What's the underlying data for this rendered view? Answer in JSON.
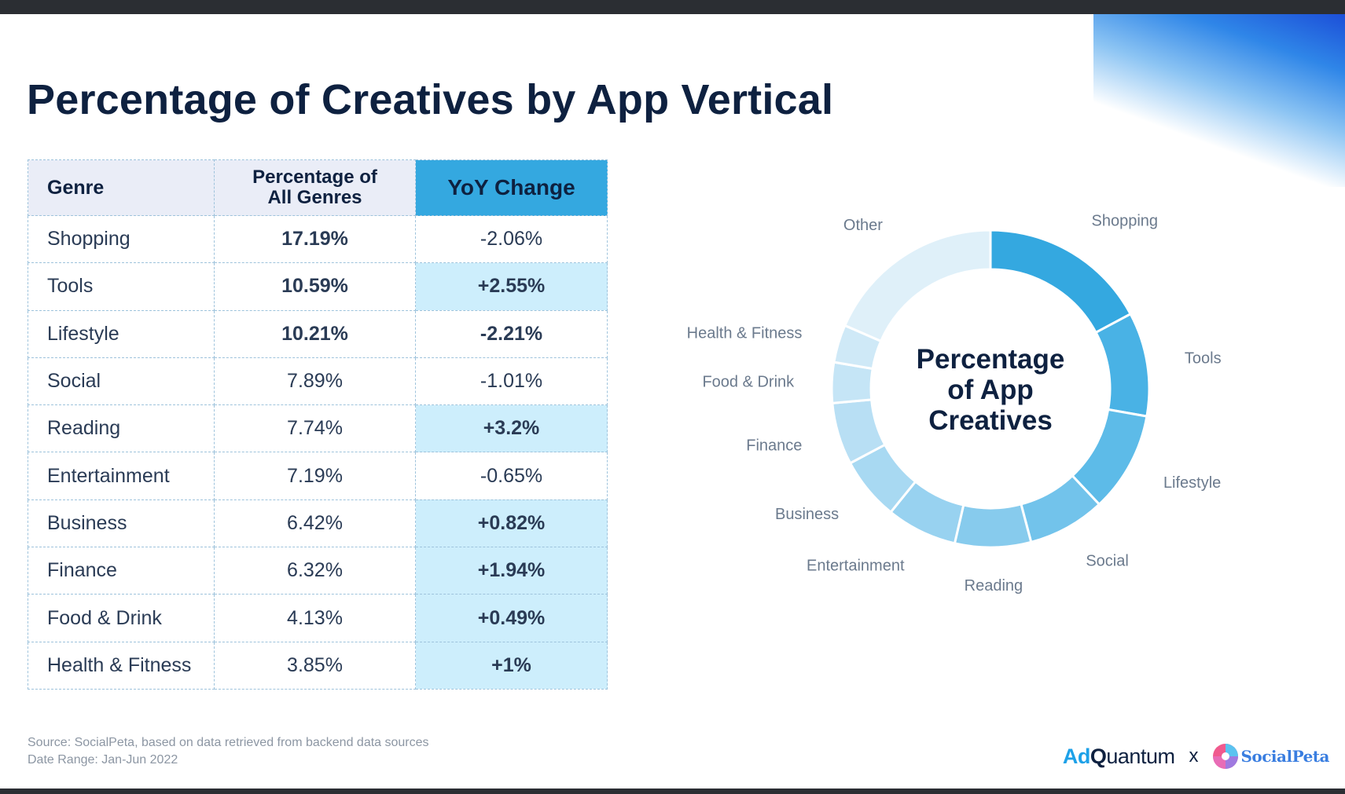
{
  "title": "Percentage of Creatives by App Vertical",
  "table": {
    "headers": {
      "genre": "Genre",
      "percentage_line1": "Percentage of",
      "percentage_line2": "All Genres",
      "yoy": "YoY Change"
    },
    "rows": [
      {
        "genre": "Shopping",
        "percentage": "17.19%",
        "yoy": "-2.06%",
        "pct_bold": true,
        "yoy_bold": false,
        "yoy_highlight": false
      },
      {
        "genre": "Tools",
        "percentage": "10.59%",
        "yoy": "+2.55%",
        "pct_bold": true,
        "yoy_bold": true,
        "yoy_highlight": true
      },
      {
        "genre": "Lifestyle",
        "percentage": "10.21%",
        "yoy": "-2.21%",
        "pct_bold": true,
        "yoy_bold": true,
        "yoy_highlight": false
      },
      {
        "genre": "Social",
        "percentage": "7.89%",
        "yoy": "-1.01%",
        "pct_bold": false,
        "yoy_bold": false,
        "yoy_highlight": false
      },
      {
        "genre": "Reading",
        "percentage": "7.74%",
        "yoy": "+3.2%",
        "pct_bold": false,
        "yoy_bold": true,
        "yoy_highlight": true
      },
      {
        "genre": "Entertainment",
        "percentage": "7.19%",
        "yoy": "-0.65%",
        "pct_bold": false,
        "yoy_bold": false,
        "yoy_highlight": false
      },
      {
        "genre": "Business",
        "percentage": "6.42%",
        "yoy": "+0.82%",
        "pct_bold": false,
        "yoy_bold": true,
        "yoy_highlight": true
      },
      {
        "genre": "Finance",
        "percentage": "6.32%",
        "yoy": "+1.94%",
        "pct_bold": false,
        "yoy_bold": true,
        "yoy_highlight": true
      },
      {
        "genre": "Food & Drink",
        "percentage": "4.13%",
        "yoy": "+0.49%",
        "pct_bold": false,
        "yoy_bold": true,
        "yoy_highlight": true
      },
      {
        "genre": "Health & Fitness",
        "percentage": "3.85%",
        "yoy": "+1%",
        "pct_bold": false,
        "yoy_bold": true,
        "yoy_highlight": true
      }
    ]
  },
  "chart_data": {
    "type": "pie",
    "subtype": "donut",
    "center_label": [
      "Percentage",
      "of App",
      "Creatives"
    ],
    "slices": [
      {
        "label": "Shopping",
        "value": 17.19,
        "color": "#34a8e0"
      },
      {
        "label": "Tools",
        "value": 10.59,
        "color": "#49b2e5"
      },
      {
        "label": "Lifestyle",
        "value": 10.21,
        "color": "#5dbbe8"
      },
      {
        "label": "Social",
        "value": 7.89,
        "color": "#72c3eb"
      },
      {
        "label": "Reading",
        "value": 7.74,
        "color": "#87cbed"
      },
      {
        "label": "Entertainment",
        "value": 7.19,
        "color": "#98d2f0"
      },
      {
        "label": "Business",
        "value": 6.42,
        "color": "#a8d9f2"
      },
      {
        "label": "Finance",
        "value": 6.32,
        "color": "#b8dff4"
      },
      {
        "label": "Food & Drink",
        "value": 4.13,
        "color": "#c5e5f6"
      },
      {
        "label": "Health & Fitness",
        "value": 3.85,
        "color": "#cfe9f7"
      },
      {
        "label": "Other",
        "value": 18.47,
        "color": "#dff0f9"
      }
    ]
  },
  "footer": {
    "source": "Source: SocialPeta, based on data retrieved from backend data sources",
    "date_range": "Date Range: Jan-Jun 2022",
    "logo_adquantum_ad": "Ad",
    "logo_adquantum_q": "Q",
    "logo_adquantum_rest": "uantum",
    "logo_separator": "x",
    "logo_socialpeta": "SocialPeta"
  }
}
